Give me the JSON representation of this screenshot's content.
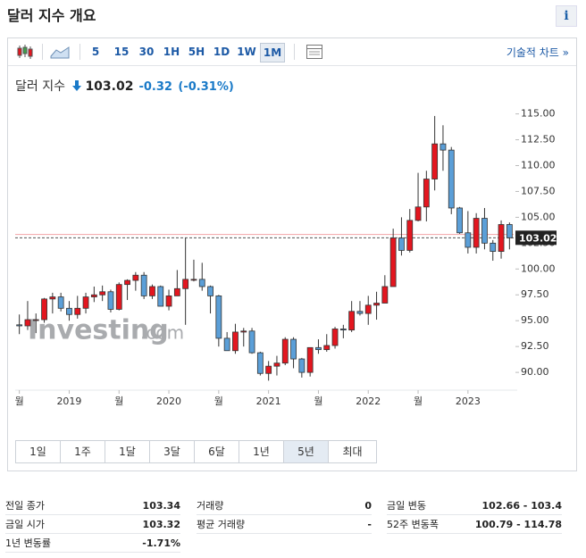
{
  "header": {
    "title": "달러 지수 개요",
    "info": "i"
  },
  "toolbar": {
    "intervals": [
      "5",
      "15",
      "30",
      "1H",
      "5H",
      "1D",
      "1W",
      "1M"
    ],
    "selected": 7,
    "technical": "기술적 차트 »"
  },
  "quote": {
    "name": "달러 지수",
    "price": "103.02",
    "change": "-0.32",
    "change_pct": "(-0.31%)"
  },
  "chart_data": {
    "type": "candlestick",
    "watermark": "Investing",
    "watermark_suffix": ".com",
    "categories": [
      "월",
      null,
      null,
      null,
      null,
      null,
      "2019",
      null,
      null,
      null,
      null,
      null,
      "월",
      null,
      null,
      null,
      null,
      null,
      "2020",
      null,
      null,
      null,
      null,
      null,
      "월",
      null,
      null,
      null,
      null,
      null,
      "2021",
      null,
      null,
      null,
      null,
      null,
      "월",
      null,
      null,
      null,
      null,
      null,
      "2022",
      null,
      null,
      null,
      null,
      null,
      "월",
      null,
      null,
      null,
      null,
      null,
      "2023",
      null,
      null,
      null,
      null,
      null
    ],
    "open": [
      94.6,
      94.5,
      95.1,
      95.1,
      97.1,
      97.3,
      96.2,
      95.6,
      96.2,
      97.3,
      97.5,
      97.8,
      96.1,
      98.5,
      98.9,
      99.4,
      97.4,
      98.3,
      96.4,
      97.4,
      98.1,
      99.0,
      99.0,
      98.3,
      97.4,
      93.3,
      92.1,
      93.9,
      94.0,
      91.9,
      89.9,
      90.6,
      90.9,
      93.2,
      91.3,
      90.0,
      92.4,
      92.2,
      92.6,
      94.2,
      94.1,
      95.9,
      95.7,
      96.5,
      96.7,
      98.3,
      103.0,
      101.8,
      104.7,
      106.0,
      108.7,
      112.1,
      111.5,
      105.9,
      103.5,
      102.1,
      104.9,
      102.5,
      101.7,
      104.3
    ],
    "high": [
      95.6,
      96.9,
      95.7,
      97.2,
      97.7,
      97.7,
      96.9,
      97.4,
      97.7,
      98.3,
      98.4,
      98.0,
      98.7,
      99.0,
      99.7,
      99.7,
      98.5,
      98.4,
      98.0,
      99.9,
      103.0,
      100.9,
      100.6,
      98.4,
      97.5,
      93.9,
      94.7,
      94.3,
      94.3,
      92.0,
      91.1,
      91.6,
      93.4,
      93.4,
      91.4,
      92.4,
      93.2,
      93.7,
      94.4,
      94.6,
      96.9,
      96.9,
      97.4,
      97.8,
      99.4,
      103.9,
      105.0,
      105.8,
      109.3,
      109.5,
      114.8,
      113.9,
      111.8,
      106.0,
      105.6,
      105.4,
      105.9,
      102.8,
      104.7,
      104.5
    ],
    "low": [
      93.7,
      94.1,
      93.8,
      94.8,
      95.7,
      95.9,
      95.0,
      95.2,
      95.7,
      96.8,
      96.9,
      95.8,
      96.0,
      97.0,
      97.9,
      97.1,
      97.1,
      96.4,
      96.0,
      97.4,
      94.6,
      98.8,
      97.9,
      95.7,
      92.5,
      92.1,
      91.8,
      92.5,
      91.8,
      89.7,
      89.2,
      89.7,
      90.7,
      90.4,
      89.5,
      89.6,
      91.8,
      92.0,
      92.3,
      93.3,
      93.9,
      95.5,
      94.6,
      95.1,
      96.7,
      98.3,
      101.3,
      101.6,
      104.6,
      104.6,
      107.6,
      109.5,
      105.3,
      103.4,
      101.5,
      101.5,
      101.9,
      100.8,
      101.0,
      101.9
    ],
    "close": [
      94.5,
      95.1,
      95.1,
      97.1,
      97.3,
      96.2,
      95.6,
      96.2,
      97.3,
      97.5,
      97.8,
      96.1,
      98.5,
      98.9,
      99.4,
      97.4,
      98.3,
      96.4,
      97.4,
      98.1,
      99.0,
      99.0,
      98.3,
      97.4,
      93.3,
      92.1,
      93.9,
      94.0,
      91.9,
      89.9,
      90.6,
      90.9,
      93.2,
      91.3,
      90.0,
      92.4,
      92.2,
      92.6,
      94.2,
      94.1,
      95.9,
      95.7,
      96.5,
      96.7,
      98.3,
      103.0,
      101.8,
      104.7,
      106.0,
      108.7,
      112.1,
      111.5,
      105.9,
      103.5,
      102.1,
      104.9,
      102.5,
      101.7,
      104.3,
      103.02
    ],
    "up_color": "#e3161f",
    "down_color": "#5b9fd8",
    "ylim": [
      88.8,
      116
    ],
    "yticks": [
      {
        "value": 90,
        "label": "90.00"
      },
      {
        "value": 92.5,
        "label": "92.50"
      },
      {
        "value": 95,
        "label": "95.00"
      },
      {
        "value": 97.5,
        "label": "97.50"
      },
      {
        "value": 100,
        "label": "100.00"
      },
      {
        "value": 102.5,
        "label": "102.50"
      },
      {
        "value": 105,
        "label": "105.00"
      },
      {
        "value": 107.5,
        "label": "107.50"
      },
      {
        "value": 110,
        "label": "110.00"
      },
      {
        "value": 112.5,
        "label": "112.50"
      },
      {
        "value": 115,
        "label": "115.00"
      }
    ],
    "last_price": 103.02,
    "prev_close_line": 103.34,
    "grid": false
  },
  "ranges": {
    "items": [
      "1일",
      "1주",
      "1달",
      "3달",
      "6달",
      "1년",
      "5년",
      "최대"
    ],
    "selected": 6
  },
  "stats": [
    [
      {
        "label": "전일 종가",
        "value": "103.34"
      },
      {
        "label": "금일 시가",
        "value": "103.32"
      },
      {
        "label": "1년 변동률",
        "value": "-1.71%"
      }
    ],
    [
      {
        "label": "거래량",
        "value": "0"
      },
      {
        "label": "평균 거래량",
        "value": "-"
      }
    ],
    [
      {
        "label": "금일 변동",
        "value": "102.66 - 103.4"
      },
      {
        "label": "52주 변동폭",
        "value": "100.79 - 114.78"
      }
    ]
  ]
}
